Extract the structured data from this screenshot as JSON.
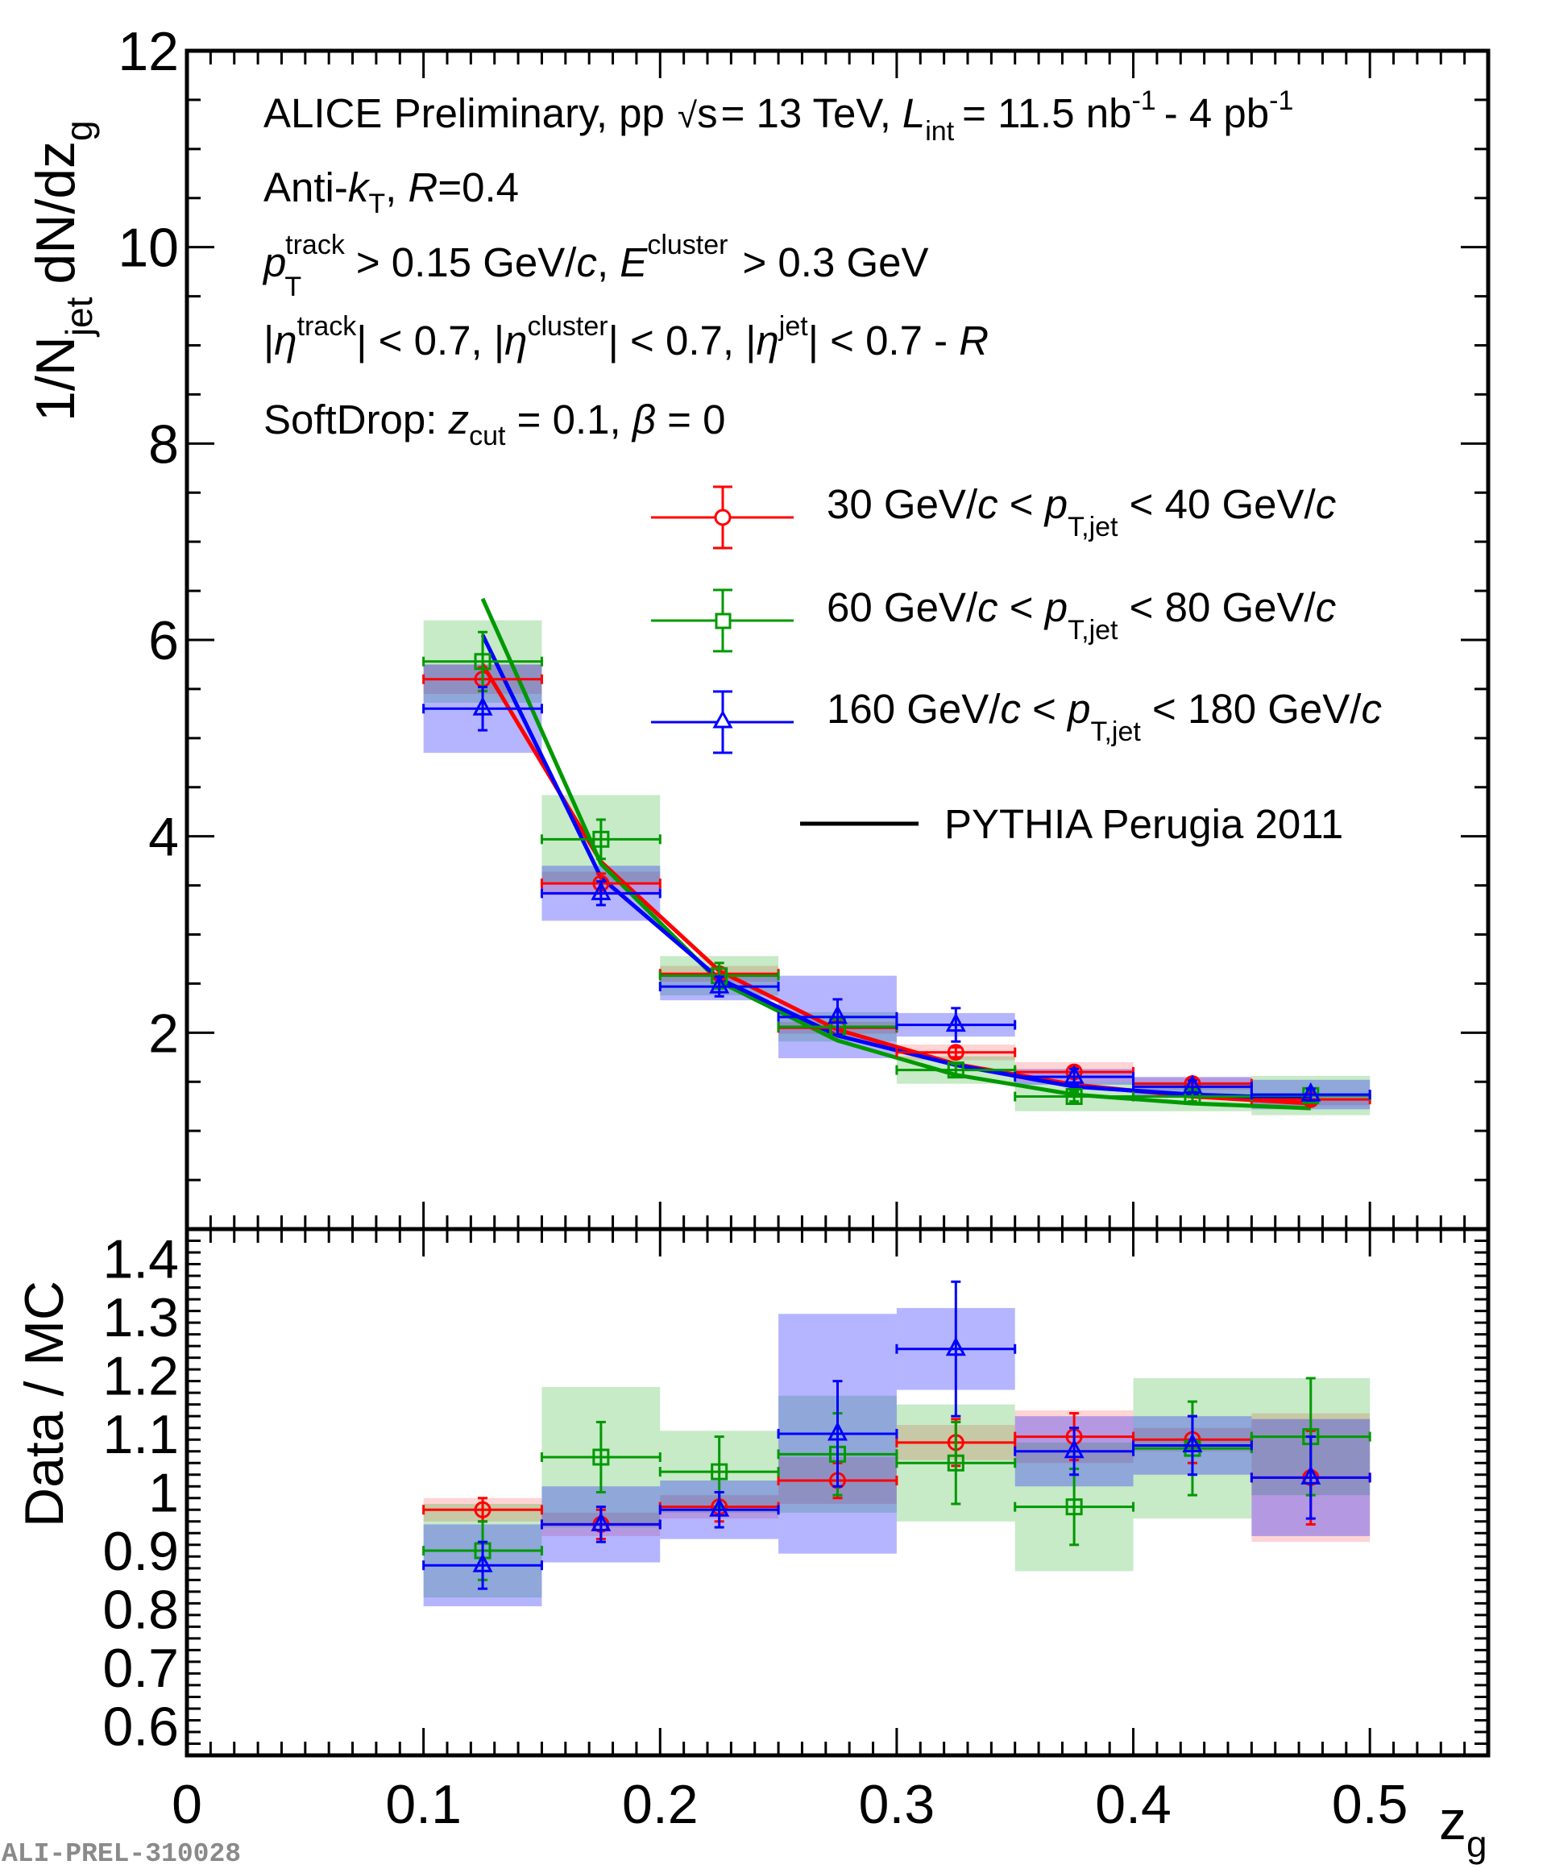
{
  "chart_data": [
    {
      "type": "scatter",
      "panel": "top",
      "title": "",
      "xlabel": "z_g",
      "ylabel": "1/N_jet dN/dz_g",
      "xlim": [
        0,
        0.55
      ],
      "ylim": [
        0,
        12
      ],
      "x_ticks": [
        "0",
        "0.1",
        "0.2",
        "0.3",
        "0.4",
        "0.5"
      ],
      "y_ticks": [
        "2",
        "4",
        "6",
        "8",
        "10",
        "12"
      ],
      "annotations": {
        "line1_main": "ALICE Preliminary, pp",
        "line1_sqrt": "s",
        "line1_energy": "= 13 TeV,",
        "line1_L": "L",
        "line1_int": "int",
        "line1_value": "= 11.5 nb",
        "line1_exp1": "-1",
        "line1_value2": "- 4 pb",
        "line1_exp2": "-1",
        "line2": "Anti-k_T, R=0.4",
        "line3": "p_T^track > 0.15 GeV/c, E^cluster > 0.3 GeV",
        "line4": "|η^track| < 0.7, |η^cluster| < 0.7, |η^jet| < 0.7 - R",
        "line5": "SoftDrop: z_cut = 0.1, β = 0"
      },
      "legend": {
        "placement": "top-right",
        "entries": [
          {
            "label": "30 GeV/c < p_T,jet < 40 GeV/c",
            "marker": "circle",
            "color": "#ff0000"
          },
          {
            "label": "60 GeV/c < p_T,jet < 80 GeV/c",
            "marker": "square",
            "color": "#009900"
          },
          {
            "label": "160 GeV/c < p_T,jet < 180 GeV/c",
            "marker": "triangle",
            "color": "#0000ff"
          },
          {
            "label": "PYTHIA Perugia 2011",
            "marker": "line",
            "color": "#000000"
          }
        ]
      },
      "bin_edges": [
        0.1,
        0.15,
        0.2,
        0.25,
        0.3,
        0.35,
        0.4,
        0.45,
        0.5
      ],
      "x": [
        0.125,
        0.175,
        0.225,
        0.275,
        0.325,
        0.375,
        0.425,
        0.475
      ],
      "series": [
        {
          "name": "30 GeV/c < p_T,jet < 40 GeV/c",
          "color": "#ff0000",
          "marker": "circle",
          "values": [
            5.6,
            3.52,
            2.6,
            2.05,
            1.8,
            1.6,
            1.48,
            1.32
          ],
          "stat_err": [
            0.12,
            0.1,
            0.06,
            0.06,
            0.05,
            0.05,
            0.05,
            0.05
          ],
          "sys_err": [
            0.15,
            0.12,
            0.08,
            0.06,
            0.08,
            0.1,
            0.06,
            0.06
          ]
        },
        {
          "name": "60 GeV/c < p_T,jet < 80 GeV/c",
          "color": "#009900",
          "marker": "square",
          "values": [
            5.78,
            3.97,
            2.58,
            2.06,
            1.62,
            1.35,
            1.35,
            1.36
          ],
          "stat_err": [
            0.3,
            0.2,
            0.13,
            0.08,
            0.06,
            0.05,
            0.05,
            0.05
          ],
          "sys_err": [
            0.42,
            0.45,
            0.2,
            0.15,
            0.14,
            0.15,
            0.15,
            0.2
          ]
        },
        {
          "name": "160 GeV/c < p_T,jet < 180 GeV/c",
          "color": "#0000ff",
          "marker": "triangle",
          "values": [
            5.3,
            3.42,
            2.47,
            2.16,
            2.08,
            1.55,
            1.45,
            1.37
          ],
          "stat_err": [
            0.22,
            0.12,
            0.1,
            0.18,
            0.17,
            0.08,
            0.06,
            0.06
          ],
          "sys_err": [
            0.45,
            0.28,
            0.14,
            0.42,
            0.12,
            0.08,
            0.1,
            0.15
          ]
        }
      ],
      "models": [
        {
          "name": "PYTHIA Perugia 2011 (30-40)",
          "color": "#ff0000",
          "x": [
            0.125,
            0.175,
            0.225,
            0.275,
            0.325,
            0.375,
            0.425,
            0.475
          ],
          "values": [
            5.75,
            3.74,
            2.63,
            2.03,
            1.68,
            1.47,
            1.35,
            1.28
          ]
        },
        {
          "name": "PYTHIA Perugia 2011 (60-80)",
          "color": "#009900",
          "x": [
            0.125,
            0.175,
            0.225,
            0.275,
            0.325,
            0.375,
            0.425,
            0.475
          ],
          "values": [
            6.42,
            3.72,
            2.52,
            1.92,
            1.57,
            1.37,
            1.28,
            1.23
          ]
        },
        {
          "name": "PYTHIA Perugia 2011 (160-180)",
          "color": "#0000ff",
          "x": [
            0.125,
            0.175,
            0.225,
            0.275,
            0.325,
            0.375,
            0.425,
            0.475
          ],
          "values": [
            6.05,
            3.58,
            2.55,
            1.97,
            1.67,
            1.45,
            1.37,
            1.33
          ]
        }
      ]
    },
    {
      "type": "scatter",
      "panel": "ratio",
      "xlabel": "z_g",
      "ylabel": "Data / MC",
      "xlim": [
        0,
        0.55
      ],
      "ylim": [
        0.55,
        1.45
      ],
      "x_ticks": [
        "0",
        "0.1",
        "0.2",
        "0.3",
        "0.4",
        "0.5"
      ],
      "y_ticks": [
        "0.6",
        "0.7",
        "0.8",
        "0.9",
        "1",
        "1.1",
        "1.2",
        "1.3",
        "1.4"
      ],
      "bin_edges": [
        0.1,
        0.15,
        0.2,
        0.25,
        0.3,
        0.35,
        0.4,
        0.45,
        0.5
      ],
      "x": [
        0.125,
        0.175,
        0.225,
        0.275,
        0.325,
        0.375,
        0.425,
        0.475
      ],
      "series": [
        {
          "name": "30 GeV/c < p_T,jet < 40 GeV/c",
          "color": "#ff0000",
          "marker": "circle",
          "values": [
            0.97,
            0.945,
            0.975,
            1.02,
            1.085,
            1.095,
            1.09,
            1.025
          ],
          "stat_err": [
            0.02,
            0.025,
            0.025,
            0.03,
            0.04,
            0.04,
            0.04,
            0.08
          ],
          "sys_err": [
            0.02,
            0.02,
            0.02,
            0.04,
            0.03,
            0.045,
            0.02,
            0.11
          ]
        },
        {
          "name": "60 GeV/c < p_T,jet < 80 GeV/c",
          "color": "#009900",
          "marker": "square",
          "values": [
            0.9,
            1.06,
            1.035,
            1.065,
            1.05,
            0.975,
            1.075,
            1.095
          ],
          "stat_err": [
            0.05,
            0.06,
            0.06,
            0.07,
            0.07,
            0.065,
            0.08,
            0.1
          ],
          "sys_err": [
            0.08,
            0.12,
            0.07,
            0.1,
            0.1,
            0.11,
            0.12,
            0.1
          ]
        },
        {
          "name": "160 GeV/c < p_T,jet < 180 GeV/c",
          "color": "#0000ff",
          "marker": "triangle",
          "values": [
            0.875,
            0.945,
            0.97,
            1.1,
            1.245,
            1.07,
            1.08,
            1.025
          ],
          "stat_err": [
            0.04,
            0.03,
            0.03,
            0.09,
            0.115,
            0.04,
            0.05,
            0.07
          ],
          "sys_err": [
            0.07,
            0.065,
            0.05,
            0.205,
            0.07,
            0.06,
            0.05,
            0.1
          ]
        }
      ]
    }
  ],
  "watermark": "ALI-PREL-310028"
}
